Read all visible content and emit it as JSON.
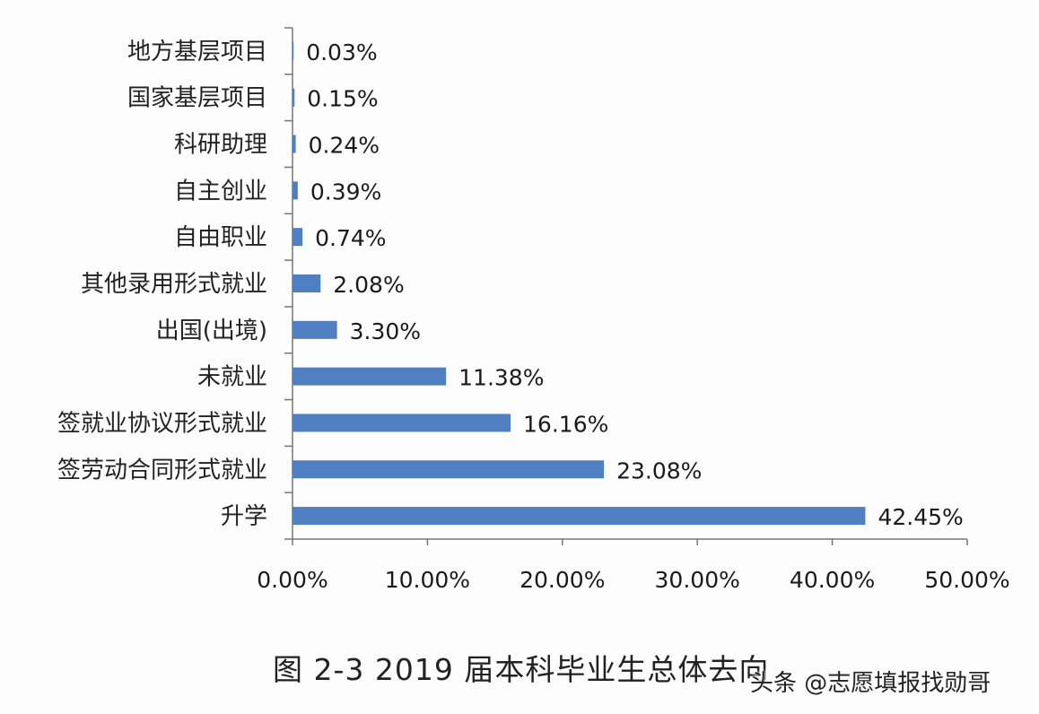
{
  "chart_data": {
    "type": "bar",
    "orientation": "horizontal",
    "categories": [
      "地方基层项目",
      "国家基层项目",
      "科研助理",
      "自主创业",
      "自由职业",
      "其他录用形式就业",
      "出国(出境)",
      "未就业",
      "签就业协议形式就业",
      "签劳动合同形式就业",
      "升学"
    ],
    "values": [
      0.03,
      0.15,
      0.24,
      0.39,
      0.74,
      2.08,
      3.3,
      11.38,
      16.16,
      23.08,
      42.45
    ],
    "data_labels": [
      "0.03%",
      "0.15%",
      "0.24%",
      "0.39%",
      "0.74%",
      "2.08%",
      "3.30%",
      "11.38%",
      "16.16%",
      "23.08%",
      "42.45%"
    ],
    "xlim": [
      0,
      50
    ],
    "x_ticks": [
      "0.00%",
      "10.00%",
      "20.00%",
      "30.00%",
      "40.00%",
      "50.00%"
    ],
    "title": "图 2-3 2019 届本科毕业生总体去向",
    "xlabel": "",
    "ylabel": "",
    "grid": false,
    "bar_color": "#4f7fc0"
  },
  "watermark": "头条 @志愿填报找勋哥"
}
